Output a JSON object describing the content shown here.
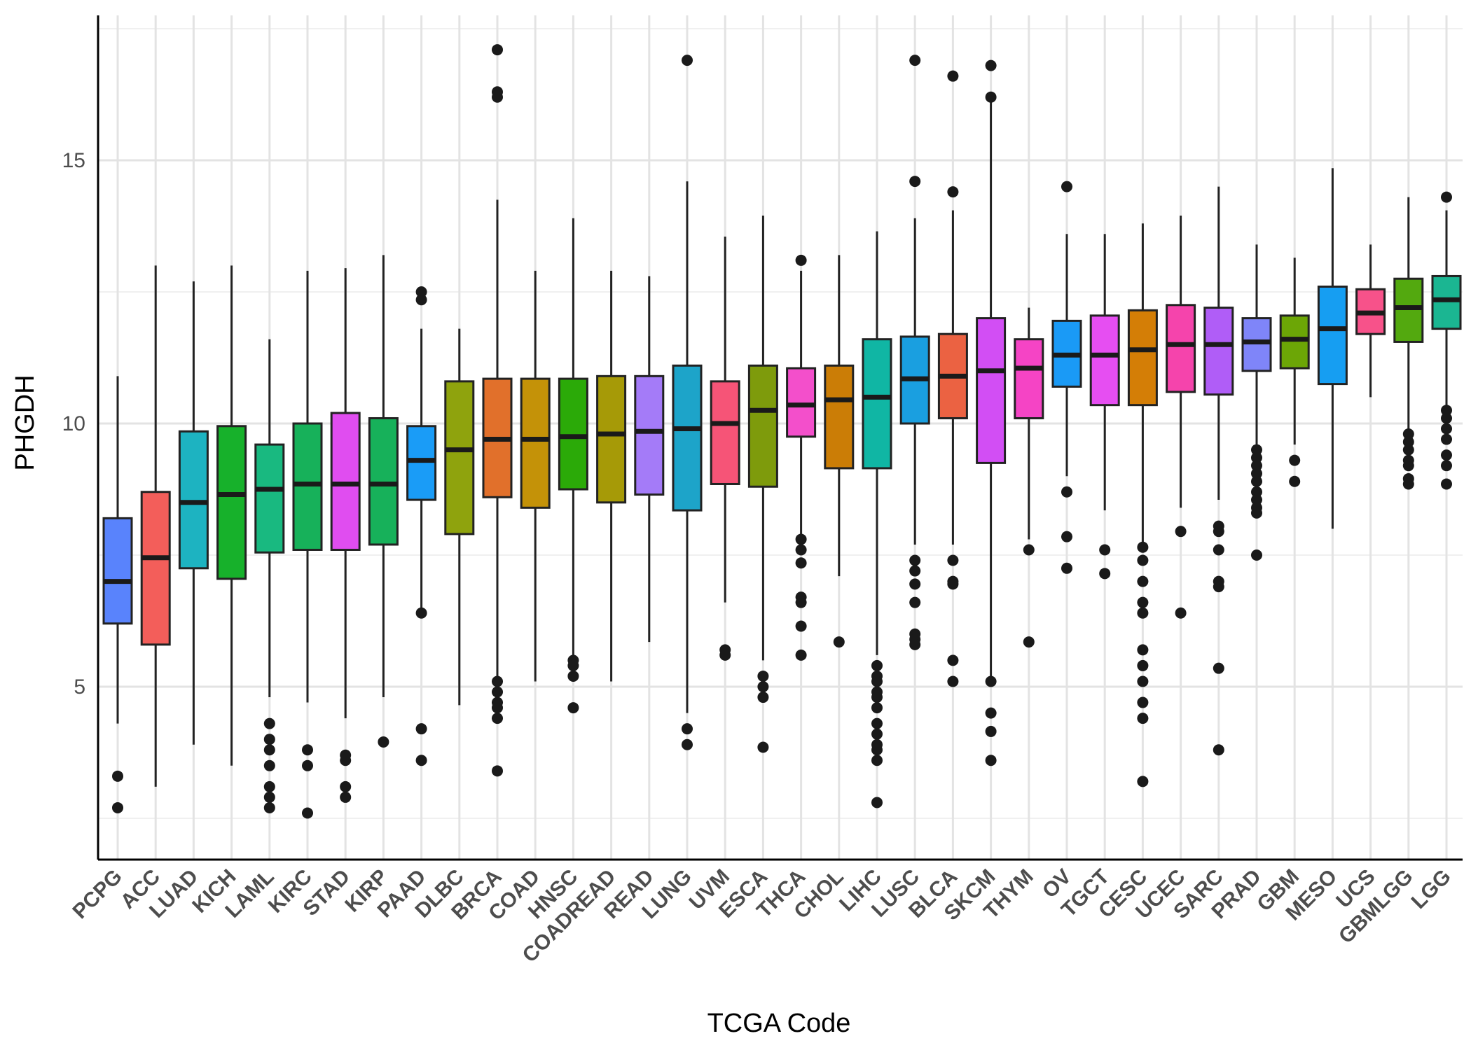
{
  "chart_data": {
    "type": "boxplot",
    "xlabel": "TCGA Code",
    "ylabel": "PHGDH",
    "ylim": [
      2.5,
      18.5
    ],
    "y_ticks": [
      5,
      10,
      15
    ],
    "y_minor_ticks": [
      2.5,
      7.5,
      12.5,
      17.5
    ],
    "grid": true,
    "legend": "none",
    "categories": [
      "PCPG",
      "ACC",
      "LUAD",
      "KICH",
      "LAML",
      "KIRC",
      "STAD",
      "KIRP",
      "PAAD",
      "DLBC",
      "BRCA",
      "COAD",
      "HNSC",
      "COADREAD",
      "READ",
      "LUNG",
      "UVM",
      "ESCA",
      "THCA",
      "CHOL",
      "LIHC",
      "LUSC",
      "BLCA",
      "SKCM",
      "THYM",
      "OV",
      "TGCT",
      "CESC",
      "UCEC",
      "SARC",
      "PRAD",
      "GBM",
      "MESO",
      "UCS",
      "GBMLGG",
      "LGG"
    ],
    "boxes": [
      {
        "category": "PCPG",
        "color": "#5983FC",
        "lower_whisker": 4.3,
        "q1": 6.2,
        "median": 7.0,
        "q3": 8.2,
        "upper_whisker": 10.9,
        "outliers": [
          3.3,
          2.7
        ]
      },
      {
        "category": "ACC",
        "color": "#F35E5A",
        "lower_whisker": 3.1,
        "q1": 5.8,
        "median": 7.45,
        "q3": 8.7,
        "upper_whisker": 13.0,
        "outliers": []
      },
      {
        "category": "LUAD",
        "color": "#1DB3C1",
        "lower_whisker": 3.9,
        "q1": 7.25,
        "median": 8.5,
        "q3": 9.85,
        "upper_whisker": 12.7,
        "outliers": []
      },
      {
        "category": "KICH",
        "color": "#17B12B",
        "lower_whisker": 3.5,
        "q1": 7.05,
        "median": 8.65,
        "q3": 9.95,
        "upper_whisker": 13.0,
        "outliers": []
      },
      {
        "category": "LAML",
        "color": "#19B980",
        "lower_whisker": 4.8,
        "q1": 7.55,
        "median": 8.75,
        "q3": 9.6,
        "upper_whisker": 11.6,
        "outliers": [
          4.3,
          4.0,
          3.8,
          3.5,
          3.1,
          2.9,
          2.7
        ]
      },
      {
        "category": "KIRC",
        "color": "#17B15A",
        "lower_whisker": 4.7,
        "q1": 7.6,
        "median": 8.85,
        "q3": 10.0,
        "upper_whisker": 12.9,
        "outliers": [
          3.8,
          3.5,
          2.6
        ]
      },
      {
        "category": "STAD",
        "color": "#E04DF0",
        "lower_whisker": 4.4,
        "q1": 7.6,
        "median": 8.85,
        "q3": 10.2,
        "upper_whisker": 12.95,
        "outliers": [
          3.7,
          3.6,
          3.1,
          2.9
        ]
      },
      {
        "category": "KIRP",
        "color": "#17B15A",
        "lower_whisker": 4.8,
        "q1": 7.7,
        "median": 8.85,
        "q3": 10.1,
        "upper_whisker": 13.2,
        "outliers": [
          3.95
        ]
      },
      {
        "category": "PAAD",
        "color": "#1A9CF7",
        "lower_whisker": 6.4,
        "q1": 8.55,
        "median": 9.3,
        "q3": 9.95,
        "upper_whisker": 11.8,
        "outliers": [
          12.5,
          12.35,
          6.4,
          4.2,
          3.6
        ]
      },
      {
        "category": "DLBC",
        "color": "#8FA30D",
        "lower_whisker": 4.65,
        "q1": 7.9,
        "median": 9.5,
        "q3": 10.8,
        "upper_whisker": 11.8,
        "outliers": []
      },
      {
        "category": "BRCA",
        "color": "#E1702B",
        "lower_whisker": 5.1,
        "q1": 8.6,
        "median": 9.7,
        "q3": 10.85,
        "upper_whisker": 14.25,
        "outliers": [
          17.1,
          16.3,
          16.2,
          5.1,
          4.9,
          4.7,
          4.6,
          4.4,
          3.4
        ]
      },
      {
        "category": "COAD",
        "color": "#C49208",
        "lower_whisker": 5.1,
        "q1": 8.4,
        "median": 9.7,
        "q3": 10.85,
        "upper_whisker": 12.9,
        "outliers": []
      },
      {
        "category": "HNSC",
        "color": "#2BAA08",
        "lower_whisker": 5.5,
        "q1": 8.75,
        "median": 9.75,
        "q3": 10.85,
        "upper_whisker": 13.9,
        "outliers": [
          5.5,
          5.4,
          5.2,
          4.6
        ]
      },
      {
        "category": "COADREAD",
        "color": "#A69A07",
        "lower_whisker": 5.1,
        "q1": 8.5,
        "median": 9.8,
        "q3": 10.9,
        "upper_whisker": 12.9,
        "outliers": []
      },
      {
        "category": "READ",
        "color": "#A47BF8",
        "lower_whisker": 5.85,
        "q1": 8.65,
        "median": 9.85,
        "q3": 10.9,
        "upper_whisker": 12.8,
        "outliers": []
      },
      {
        "category": "LUNG",
        "color": "#1DA4C9",
        "lower_whisker": 4.5,
        "q1": 8.35,
        "median": 9.9,
        "q3": 11.1,
        "upper_whisker": 14.6,
        "outliers": [
          16.9,
          4.2,
          3.9
        ]
      },
      {
        "category": "UVM",
        "color": "#F65477",
        "lower_whisker": 6.6,
        "q1": 8.85,
        "median": 10.0,
        "q3": 10.8,
        "upper_whisker": 13.55,
        "outliers": [
          5.7,
          5.6
        ]
      },
      {
        "category": "ESCA",
        "color": "#7E9B0C",
        "lower_whisker": 5.5,
        "q1": 8.8,
        "median": 10.25,
        "q3": 11.1,
        "upper_whisker": 13.95,
        "outliers": [
          5.2,
          5.0,
          4.8,
          3.85
        ]
      },
      {
        "category": "THCA",
        "color": "#F34FCB",
        "lower_whisker": 7.7,
        "q1": 9.75,
        "median": 10.35,
        "q3": 11.05,
        "upper_whisker": 12.9,
        "outliers": [
          13.1,
          7.8,
          7.6,
          7.35,
          6.7,
          6.6,
          6.15,
          5.6
        ]
      },
      {
        "category": "CHOL",
        "color": "#CB7D06",
        "lower_whisker": 7.1,
        "q1": 9.15,
        "median": 10.45,
        "q3": 11.1,
        "upper_whisker": 13.2,
        "outliers": [
          5.85
        ]
      },
      {
        "category": "LIHC",
        "color": "#10B6A4",
        "lower_whisker": 5.6,
        "q1": 9.15,
        "median": 10.5,
        "q3": 11.6,
        "upper_whisker": 13.65,
        "outliers": [
          5.4,
          5.2,
          5.1,
          4.9,
          4.8,
          4.6,
          4.3,
          4.1,
          3.9,
          3.8,
          3.6,
          2.8
        ]
      },
      {
        "category": "LUSC",
        "color": "#1A9FE0",
        "lower_whisker": 7.7,
        "q1": 10.0,
        "median": 10.85,
        "q3": 11.65,
        "upper_whisker": 13.9,
        "outliers": [
          16.9,
          14.6,
          7.4,
          7.2,
          6.95,
          6.6,
          6.0,
          5.9,
          5.8
        ]
      },
      {
        "category": "BLCA",
        "color": "#EB6242",
        "lower_whisker": 7.7,
        "q1": 10.1,
        "median": 10.9,
        "q3": 11.7,
        "upper_whisker": 14.05,
        "outliers": [
          16.6,
          14.4,
          7.4,
          7.0,
          6.95,
          5.5,
          5.1
        ]
      },
      {
        "category": "SKCM",
        "color": "#D24EF4",
        "lower_whisker": 5.1,
        "q1": 9.25,
        "median": 11.0,
        "q3": 12.0,
        "upper_whisker": 16.2,
        "outliers": [
          16.8,
          16.2,
          5.1,
          4.5,
          4.15,
          3.6
        ]
      },
      {
        "category": "THYM",
        "color": "#F544C5",
        "lower_whisker": 7.8,
        "q1": 10.1,
        "median": 11.05,
        "q3": 11.6,
        "upper_whisker": 12.2,
        "outliers": [
          7.6,
          5.85
        ]
      },
      {
        "category": "OV",
        "color": "#1A9AF6",
        "lower_whisker": 9.0,
        "q1": 10.7,
        "median": 11.3,
        "q3": 11.95,
        "upper_whisker": 13.6,
        "outliers": [
          14.5,
          8.7,
          7.85,
          7.25
        ]
      },
      {
        "category": "TGCT",
        "color": "#E64EF2",
        "lower_whisker": 8.35,
        "q1": 10.35,
        "median": 11.3,
        "q3": 12.05,
        "upper_whisker": 13.6,
        "outliers": [
          7.6,
          7.15
        ]
      },
      {
        "category": "CESC",
        "color": "#D47E06",
        "lower_whisker": 7.7,
        "q1": 10.35,
        "median": 11.4,
        "q3": 12.15,
        "upper_whisker": 13.8,
        "outliers": [
          7.65,
          7.4,
          7.0,
          6.6,
          6.4,
          5.7,
          5.4,
          5.1,
          4.7,
          4.4,
          3.2
        ]
      },
      {
        "category": "UCEC",
        "color": "#F544AC",
        "lower_whisker": 8.4,
        "q1": 10.6,
        "median": 11.5,
        "q3": 12.25,
        "upper_whisker": 13.95,
        "outliers": [
          7.95,
          6.4
        ]
      },
      {
        "category": "SARC",
        "color": "#B05DF7",
        "lower_whisker": 8.55,
        "q1": 10.55,
        "median": 11.5,
        "q3": 12.2,
        "upper_whisker": 14.5,
        "outliers": [
          8.05,
          7.95,
          7.6,
          7.0,
          6.9,
          5.35,
          3.8
        ]
      },
      {
        "category": "PRAD",
        "color": "#7F85F9",
        "lower_whisker": 9.6,
        "q1": 11.0,
        "median": 11.55,
        "q3": 12.0,
        "upper_whisker": 13.4,
        "outliers": [
          9.5,
          9.35,
          9.2,
          9.05,
          8.9,
          8.7,
          8.55,
          8.4,
          8.3,
          7.5
        ]
      },
      {
        "category": "GBM",
        "color": "#6CA606",
        "lower_whisker": 9.6,
        "q1": 11.05,
        "median": 11.6,
        "q3": 12.05,
        "upper_whisker": 13.15,
        "outliers": [
          9.3,
          8.9
        ]
      },
      {
        "category": "MESO",
        "color": "#169EF2",
        "lower_whisker": 8.0,
        "q1": 10.75,
        "median": 11.8,
        "q3": 12.6,
        "upper_whisker": 14.85,
        "outliers": []
      },
      {
        "category": "UCS",
        "color": "#F7528A",
        "lower_whisker": 10.5,
        "q1": 11.7,
        "median": 12.1,
        "q3": 12.55,
        "upper_whisker": 13.4,
        "outliers": []
      },
      {
        "category": "GBMLGG",
        "color": "#53A90F",
        "lower_whisker": 9.8,
        "q1": 11.55,
        "median": 12.2,
        "q3": 12.75,
        "upper_whisker": 14.3,
        "outliers": [
          9.8,
          9.65,
          9.5,
          9.3,
          9.2,
          8.95,
          8.85
        ]
      },
      {
        "category": "LGG",
        "color": "#1BB692",
        "lower_whisker": 10.35,
        "q1": 11.8,
        "median": 12.35,
        "q3": 12.8,
        "upper_whisker": 14.05,
        "outliers": [
          14.3,
          10.25,
          10.1,
          9.9,
          9.7,
          9.4,
          9.2,
          8.85
        ]
      }
    ]
  }
}
